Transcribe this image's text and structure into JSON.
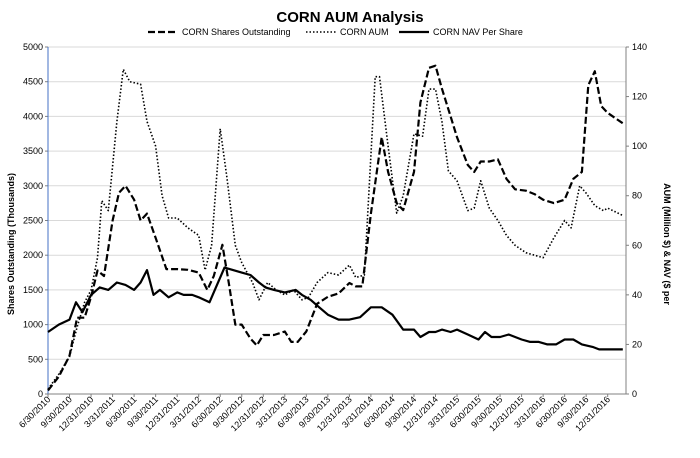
{
  "chart_data": {
    "type": "line",
    "title": "CORN AUM Analysis",
    "ylabel_left": "Shares Outstanding (Thousands)",
    "ylabel_right": "AUM (Million $) & NAV ($ per",
    "ylim_left": [
      0,
      5000
    ],
    "ylim_right": [
      0,
      140
    ],
    "yticks_left": [
      "0",
      "500",
      "1000",
      "1500",
      "2000",
      "2500",
      "3000",
      "3500",
      "4000",
      "4500",
      "5000"
    ],
    "yticks_right": [
      "0",
      "20",
      "40",
      "60",
      "80",
      "100",
      "120",
      "140"
    ],
    "x_tick_labels": [
      "6/30/2010",
      "9/30/2010",
      "12/31/2010",
      "3/31/2011",
      "6/30/2011",
      "9/30/2011",
      "12/31/2011",
      "3/31/2012",
      "6/30/2012",
      "9/30/2012",
      "12/31/2012",
      "3/31/2013",
      "6/30/2013",
      "9/30/2013",
      "12/31/2013",
      "3/31/2014",
      "6/30/2014",
      "9/30/2014",
      "12/31/2014",
      "3/31/2015",
      "6/30/2015",
      "9/30/2015",
      "12/31/2015",
      "3/31/2016",
      "6/30/2016",
      "9/30/2016",
      "12/31/2016"
    ],
    "x_range": [
      0,
      26
    ],
    "legend_position": "top",
    "grid": true,
    "series": [
      {
        "name": "CORN Shares Outstanding",
        "axis": "left",
        "style": "dashed",
        "points": [
          [
            0,
            50
          ],
          [
            0.5,
            250
          ],
          [
            1,
            550
          ],
          [
            1.35,
            1100
          ],
          [
            1.7,
            1100
          ],
          [
            2,
            1400
          ],
          [
            2.3,
            1780
          ],
          [
            2.6,
            1700
          ],
          [
            3,
            2500
          ],
          [
            3.3,
            2900
          ],
          [
            3.6,
            3000
          ],
          [
            4,
            2800
          ],
          [
            4.3,
            2500
          ],
          [
            4.6,
            2600
          ],
          [
            5,
            2250
          ],
          [
            5.5,
            1800
          ],
          [
            6,
            1800
          ],
          [
            6.5,
            1790
          ],
          [
            7,
            1750
          ],
          [
            7.4,
            1500
          ],
          [
            7.7,
            1700
          ],
          [
            8.1,
            2150
          ],
          [
            8.4,
            1600
          ],
          [
            8.7,
            1000
          ],
          [
            9,
            1000
          ],
          [
            9.4,
            800
          ],
          [
            9.7,
            700
          ],
          [
            10,
            850
          ],
          [
            10.5,
            850
          ],
          [
            11,
            900
          ],
          [
            11.3,
            750
          ],
          [
            11.6,
            750
          ],
          [
            12,
            900
          ],
          [
            12.5,
            1300
          ],
          [
            13,
            1400
          ],
          [
            13.5,
            1450
          ],
          [
            14,
            1600
          ],
          [
            14.3,
            1550
          ],
          [
            14.6,
            1550
          ],
          [
            15,
            2600
          ],
          [
            15.5,
            3700
          ],
          [
            15.8,
            3200
          ],
          [
            16.2,
            2750
          ],
          [
            16.5,
            2650
          ],
          [
            17,
            3200
          ],
          [
            17.3,
            4200
          ],
          [
            17.7,
            4700
          ],
          [
            18,
            4730
          ],
          [
            18.3,
            4400
          ],
          [
            18.7,
            4000
          ],
          [
            19,
            3700
          ],
          [
            19.5,
            3300
          ],
          [
            19.8,
            3200
          ],
          [
            20.1,
            3350
          ],
          [
            20.5,
            3350
          ],
          [
            20.9,
            3380
          ],
          [
            21.3,
            3100
          ],
          [
            21.7,
            2950
          ],
          [
            22.2,
            2930
          ],
          [
            22.6,
            2880
          ],
          [
            23,
            2800
          ],
          [
            23.5,
            2750
          ],
          [
            24,
            2800
          ],
          [
            24.4,
            3100
          ],
          [
            24.8,
            3200
          ],
          [
            25.1,
            4450
          ],
          [
            25.4,
            4650
          ],
          [
            25.7,
            4150
          ],
          [
            26,
            4050
          ],
          [
            26.7,
            3900
          ]
        ]
      },
      {
        "name": "CORN AUM",
        "axis": "right",
        "style": "dotted",
        "points": [
          [
            0,
            2
          ],
          [
            0.5,
            8
          ],
          [
            1,
            15
          ],
          [
            1.35,
            27
          ],
          [
            1.7,
            37
          ],
          [
            2,
            42
          ],
          [
            2.3,
            55
          ],
          [
            2.5,
            78
          ],
          [
            2.8,
            74
          ],
          [
            3.2,
            110
          ],
          [
            3.5,
            131
          ],
          [
            3.8,
            126
          ],
          [
            4.3,
            125
          ],
          [
            4.6,
            110
          ],
          [
            5,
            100
          ],
          [
            5.3,
            80
          ],
          [
            5.6,
            71
          ],
          [
            6,
            71
          ],
          [
            6.5,
            67
          ],
          [
            7,
            64
          ],
          [
            7.3,
            50
          ],
          [
            7.6,
            60
          ],
          [
            8,
            107
          ],
          [
            8.3,
            88
          ],
          [
            8.7,
            60
          ],
          [
            9,
            53
          ],
          [
            9.5,
            45
          ],
          [
            9.8,
            38
          ],
          [
            10.2,
            45
          ],
          [
            10.6,
            42
          ],
          [
            11,
            40
          ],
          [
            11.4,
            42
          ],
          [
            11.8,
            38
          ],
          [
            12.1,
            39
          ],
          [
            12.5,
            45
          ],
          [
            13,
            49
          ],
          [
            13.5,
            48
          ],
          [
            14,
            52
          ],
          [
            14.3,
            47
          ],
          [
            14.7,
            48
          ],
          [
            15.2,
            128
          ],
          [
            15.4,
            128
          ],
          [
            15.8,
            100
          ],
          [
            16.2,
            73
          ],
          [
            16.5,
            80
          ],
          [
            17,
            105
          ],
          [
            17.4,
            104
          ],
          [
            17.7,
            123
          ],
          [
            18,
            123
          ],
          [
            18.3,
            110
          ],
          [
            18.6,
            90
          ],
          [
            19,
            86
          ],
          [
            19.5,
            74
          ],
          [
            19.8,
            75
          ],
          [
            20.1,
            86
          ],
          [
            20.5,
            75
          ],
          [
            20.9,
            70
          ],
          [
            21.3,
            64
          ],
          [
            21.7,
            60
          ],
          [
            22.2,
            57
          ],
          [
            22.6,
            56
          ],
          [
            23,
            55
          ],
          [
            23.5,
            63
          ],
          [
            24,
            70
          ],
          [
            24.3,
            67
          ],
          [
            24.7,
            84
          ],
          [
            25,
            81
          ],
          [
            25.4,
            76
          ],
          [
            25.8,
            74
          ],
          [
            26,
            75
          ],
          [
            26.7,
            72
          ]
        ]
      },
      {
        "name": "CORN NAV Per Share",
        "axis": "right",
        "style": "solid",
        "points": [
          [
            0,
            25
          ],
          [
            0.5,
            28
          ],
          [
            1,
            30
          ],
          [
            1.3,
            37
          ],
          [
            1.6,
            33
          ],
          [
            2,
            40
          ],
          [
            2.4,
            43
          ],
          [
            2.8,
            42
          ],
          [
            3.2,
            45
          ],
          [
            3.6,
            44
          ],
          [
            4,
            42
          ],
          [
            4.3,
            45
          ],
          [
            4.6,
            50
          ],
          [
            4.9,
            40
          ],
          [
            5.2,
            42
          ],
          [
            5.6,
            39
          ],
          [
            6,
            41
          ],
          [
            6.3,
            40
          ],
          [
            6.7,
            40
          ],
          [
            7,
            39
          ],
          [
            7.5,
            37
          ],
          [
            7.8,
            43
          ],
          [
            8.2,
            51
          ],
          [
            8.6,
            50
          ],
          [
            9,
            49
          ],
          [
            9.4,
            48
          ],
          [
            9.8,
            45
          ],
          [
            10.1,
            43
          ],
          [
            10.5,
            42
          ],
          [
            11,
            41
          ],
          [
            11.5,
            42
          ],
          [
            11.8,
            40
          ],
          [
            12.2,
            38
          ],
          [
            12.6,
            35
          ],
          [
            13,
            32
          ],
          [
            13.5,
            30
          ],
          [
            14,
            30
          ],
          [
            14.5,
            31
          ],
          [
            15,
            35
          ],
          [
            15.5,
            35
          ],
          [
            16,
            32
          ],
          [
            16.5,
            26
          ],
          [
            17,
            26
          ],
          [
            17.3,
            23
          ],
          [
            17.7,
            25
          ],
          [
            18,
            25
          ],
          [
            18.3,
            26
          ],
          [
            18.7,
            25
          ],
          [
            19,
            26
          ],
          [
            19.5,
            24
          ],
          [
            20,
            22
          ],
          [
            20.3,
            25
          ],
          [
            20.6,
            23
          ],
          [
            21,
            23
          ],
          [
            21.4,
            24
          ],
          [
            22,
            22
          ],
          [
            22.4,
            21
          ],
          [
            22.8,
            21
          ],
          [
            23.2,
            20
          ],
          [
            23.6,
            20
          ],
          [
            24,
            22
          ],
          [
            24.4,
            22
          ],
          [
            24.8,
            20
          ],
          [
            25.3,
            19
          ],
          [
            25.6,
            18
          ],
          [
            26,
            18
          ],
          [
            26.7,
            18
          ]
        ]
      }
    ]
  }
}
